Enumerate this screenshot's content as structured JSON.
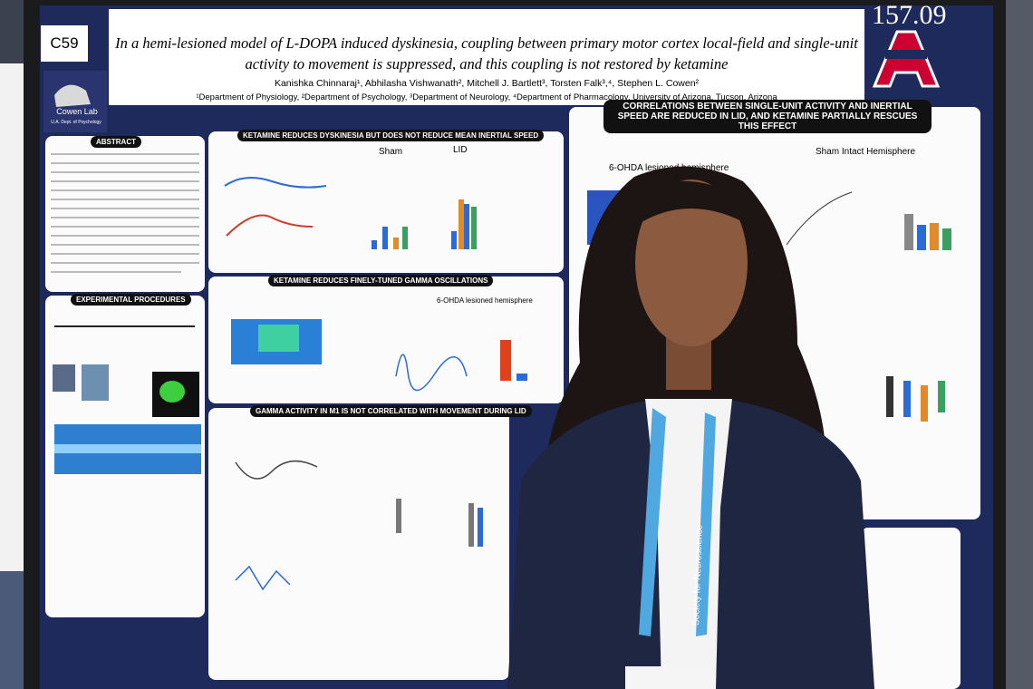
{
  "board_label": "C59",
  "poster_number": "157.09",
  "poster": {
    "title": "In a hemi-lesioned model of L-DOPA induced dyskinesia, coupling between primary motor cortex local-field and single-unit activity to movement is suppressed, and this coupling is not restored by ketamine",
    "authors": "Kanishka Chinnaraj¹, Abhilasha Vishwanath², Mitchell J. Bartlett³, Torsten Falk³,⁴, Stephen L. Cowen²",
    "affiliations": "¹Department of Physiology, ²Department of Psychology, ³Department of Neurology, ⁴Department of Pharmacology, University of Arizona, Tucson, Arizona",
    "lab_logo": {
      "name": "Cowen Lab",
      "dept": "U.A. Dept. of Psychology"
    },
    "sections": {
      "abstract": "ABSTRACT",
      "procedures": "EXPERIMENTAL PROCEDURES",
      "dyskinesia": "KETAMINE REDUCES DYSKINESIA BUT DOES NOT REDUCE MEAN INERTIAL SPEED",
      "gamma": "KETAMINE REDUCES FINELY-TUNED GAMMA OSCILLATIONS",
      "gamma_m1": "GAMMA ACTIVITY IN M1 IS NOT CORRELATED WITH MOVEMENT DURING LID",
      "correlations": "CORRELATIONS BETWEEN SINGLE-UNIT ACTIVITY AND INERTIAL SPEED ARE REDUCED IN LID, AND KETAMINE PARTIALLY RESCUES THIS EFFECT"
    },
    "panel_labels": {
      "sham": "Sham",
      "lid": "LID",
      "lesioned": "6-OHDA lesioned hemisphere",
      "sham_intact": "Sham Intact Hemisphere"
    }
  },
  "lanyard_text": "Society for Neuroscience"
}
